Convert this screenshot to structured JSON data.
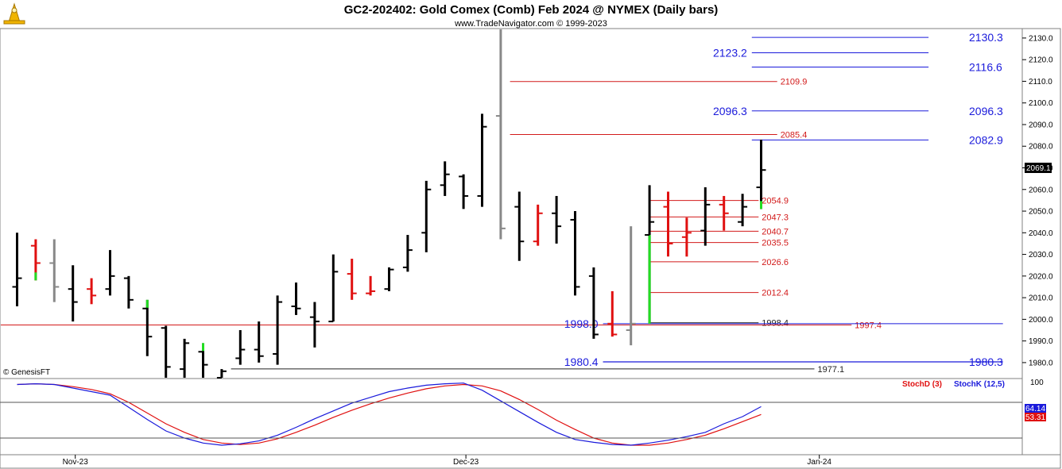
{
  "header": {
    "title": "GC2-202402:  Gold Comex (Comb) Feb 2024 @ NYMEX  (Daily bars)",
    "subtitle": "www.TradeNavigator.com © 1999-2023",
    "watermark": "© GenesisFT"
  },
  "colors": {
    "up_bar": "#000000",
    "down_bar": "#e01010",
    "inside_bar": "#888888",
    "green_bar": "#22dd22",
    "blue_level": "#1a1adb",
    "red_level": "#d21a1a",
    "dark_level": "#222222",
    "stoch_d": "#e01010",
    "stoch_k": "#1a1adb"
  },
  "chart_data": [
    {
      "type": "ohlc",
      "y_ticks": [
        "2130.0",
        "2120.0",
        "2110.0",
        "2100.0",
        "2090.0",
        "2080.0",
        "2070.0",
        "2060.0",
        "2050.0",
        "2040.0",
        "2030.0",
        "2020.0",
        "2010.0",
        "2000.0",
        "1990.0",
        "1980.0"
      ],
      "ylim": [
        1973,
        2134
      ],
      "x_labels": [
        {
          "label": "Nov-23",
          "bar": 3
        },
        {
          "label": "Dec-23",
          "bar": 24
        },
        {
          "label": "Jan-24",
          "bar": 43
        }
      ],
      "last_price": "2069.1",
      "bars": [
        {
          "x": 0,
          "o": 2015,
          "h": 2040,
          "l": 2006,
          "c": 2019,
          "color": "up"
        },
        {
          "x": 1,
          "o": 2034,
          "h": 2037,
          "l": 2018,
          "c": 2026,
          "color": "down",
          "low_tail": "green"
        },
        {
          "x": 2,
          "o": 2026,
          "h": 2037,
          "l": 2008,
          "c": 2015,
          "color": "inside"
        },
        {
          "x": 3,
          "o": 2014,
          "h": 2025,
          "l": 1999,
          "c": 2008,
          "color": "up"
        },
        {
          "x": 4,
          "o": 2014,
          "h": 2019,
          "l": 2007,
          "c": 2011,
          "color": "down"
        },
        {
          "x": 5,
          "o": 2014,
          "h": 2032,
          "l": 2011,
          "c": 2020,
          "color": "up"
        },
        {
          "x": 6,
          "o": 2019,
          "h": 2020,
          "l": 2005,
          "c": 2009,
          "color": "up"
        },
        {
          "x": 7,
          "o": 2005,
          "h": 2009,
          "l": 1983,
          "c": 1992,
          "color": "up",
          "high_tail": "green"
        },
        {
          "x": 8,
          "o": 1996,
          "h": 1997,
          "l": 1970,
          "c": 1978,
          "color": "up"
        },
        {
          "x": 9,
          "o": 1977,
          "h": 1991,
          "l": 1971,
          "c": 1989,
          "color": "up"
        },
        {
          "x": 10,
          "o": 1985,
          "h": 1989,
          "l": 1972,
          "c": 1979,
          "color": "up",
          "high_tail": "green"
        },
        {
          "x": 11,
          "o": 1973,
          "h": 1977,
          "l": 1968,
          "c": 1976,
          "color": "up"
        },
        {
          "x": 12,
          "o": 1982,
          "h": 1995,
          "l": 1979,
          "c": 1986,
          "color": "up"
        },
        {
          "x": 13,
          "o": 1986,
          "h": 1999,
          "l": 1980,
          "c": 1983,
          "color": "up"
        },
        {
          "x": 14,
          "o": 1984,
          "h": 2011,
          "l": 1979,
          "c": 2008,
          "color": "up"
        },
        {
          "x": 15,
          "o": 2006,
          "h": 2017,
          "l": 2002,
          "c": 2005,
          "color": "up"
        },
        {
          "x": 16,
          "o": 2001,
          "h": 2008,
          "l": 1987,
          "c": 1999,
          "color": "up"
        },
        {
          "x": 17,
          "o": 1999,
          "h": 2030,
          "l": 1999,
          "c": 2022,
          "color": "up"
        },
        {
          "x": 18,
          "o": 2021,
          "h": 2028,
          "l": 2009,
          "c": 2012,
          "color": "down"
        },
        {
          "x": 19,
          "o": 2012,
          "h": 2020,
          "l": 2011,
          "c": 2013,
          "color": "down"
        },
        {
          "x": 20,
          "o": 2014,
          "h": 2024,
          "l": 2013,
          "c": 2023,
          "color": "up"
        },
        {
          "x": 21,
          "o": 2024,
          "h": 2039,
          "l": 2022,
          "c": 2032,
          "color": "up"
        },
        {
          "x": 22,
          "o": 2040,
          "h": 2064,
          "l": 2031,
          "c": 2060,
          "color": "up"
        },
        {
          "x": 23,
          "o": 2062,
          "h": 2073,
          "l": 2057,
          "c": 2067,
          "color": "up"
        },
        {
          "x": 24,
          "o": 2066,
          "h": 2067,
          "l": 2051,
          "c": 2057,
          "color": "up"
        },
        {
          "x": 25,
          "o": 2057,
          "h": 2095,
          "l": 2052,
          "c": 2089,
          "color": "up"
        },
        {
          "x": 26,
          "o": 2094,
          "h": 2146,
          "l": 2037,
          "c": 2042,
          "color": "inside"
        },
        {
          "x": 27,
          "o": 2052,
          "h": 2059,
          "l": 2027,
          "c": 2036,
          "color": "up"
        },
        {
          "x": 28,
          "o": 2036,
          "h": 2053,
          "l": 2034,
          "c": 2049,
          "color": "down"
        },
        {
          "x": 29,
          "o": 2049,
          "h": 2057,
          "l": 2035,
          "c": 2043,
          "color": "up"
        },
        {
          "x": 30,
          "o": 2046,
          "h": 2050,
          "l": 2011,
          "c": 2015,
          "color": "up"
        },
        {
          "x": 31,
          "o": 2020,
          "h": 2024,
          "l": 1991,
          "c": 1993,
          "color": "up"
        },
        {
          "x": 32,
          "o": 1998,
          "h": 2013,
          "l": 1992,
          "c": 1993,
          "color": "down"
        },
        {
          "x": 33,
          "o": 1995,
          "h": 2043,
          "l": 1988,
          "c": 1998,
          "color": "inside"
        },
        {
          "x": 34,
          "o": 2039,
          "h": 2062,
          "l": 1998,
          "c": 2045,
          "color": "up",
          "low_tail": "green"
        },
        {
          "x": 35,
          "o": 2052,
          "h": 2059,
          "l": 2029,
          "c": 2035,
          "color": "down"
        },
        {
          "x": 36,
          "o": 2038,
          "h": 2047,
          "l": 2029,
          "c": 2040,
          "color": "down"
        },
        {
          "x": 37,
          "o": 2041,
          "h": 2061,
          "l": 2034,
          "c": 2053,
          "color": "up"
        },
        {
          "x": 38,
          "o": 2053,
          "h": 2057,
          "l": 2041,
          "c": 2049,
          "color": "down"
        },
        {
          "x": 39,
          "o": 2045,
          "h": 2058,
          "l": 2043,
          "c": 2052,
          "color": "up"
        },
        {
          "x": 40,
          "o": 2061,
          "h": 2083,
          "l": 2051,
          "c": 2069,
          "color": "up",
          "low_tail": "green"
        }
      ],
      "levels": [
        {
          "value": 2130.3,
          "label": "2130.3",
          "color": "blue",
          "from_bar": 39.5,
          "to_bar": 49,
          "label_side": "right"
        },
        {
          "value": 2123.2,
          "label": "2123.2",
          "color": "blue",
          "from_bar": 39.5,
          "to_bar": 49,
          "label_side": "left"
        },
        {
          "value": 2116.6,
          "label": "2116.6",
          "color": "blue",
          "from_bar": 39.5,
          "to_bar": 49,
          "label_side": "right"
        },
        {
          "value": 2109.9,
          "label": "2109.9",
          "color": "red",
          "from_bar": 26.5,
          "to_bar": 43,
          "label_side": "right-inline"
        },
        {
          "value": 2096.3,
          "label": "2096.3",
          "color": "blue",
          "from_bar": 39.5,
          "to_bar": 49,
          "label_side": "both"
        },
        {
          "value": 2085.4,
          "label": "2085.4",
          "color": "red",
          "from_bar": 26.5,
          "to_bar": 43,
          "label_side": "right-inline"
        },
        {
          "value": 2082.9,
          "label": "2082.9",
          "color": "blue",
          "from_bar": 39.5,
          "to_bar": 49,
          "label_side": "right"
        },
        {
          "value": 2054.9,
          "label": "2054.9",
          "color": "red",
          "from_bar": 34,
          "to_bar": 42,
          "label_side": "right-inline"
        },
        {
          "value": 2047.3,
          "label": "2047.3",
          "color": "red",
          "from_bar": 34,
          "to_bar": 42,
          "label_side": "right-inline"
        },
        {
          "value": 2040.7,
          "label": "2040.7",
          "color": "red",
          "from_bar": 34,
          "to_bar": 42,
          "label_side": "right-inline"
        },
        {
          "value": 2035.5,
          "label": "2035.5",
          "color": "red",
          "from_bar": 34,
          "to_bar": 42,
          "label_side": "right-inline"
        },
        {
          "value": 2026.6,
          "label": "2026.6",
          "color": "red",
          "from_bar": 34,
          "to_bar": 42,
          "label_side": "right-inline"
        },
        {
          "value": 2012.4,
          "label": "2012.4",
          "color": "red",
          "from_bar": 34,
          "to_bar": 42,
          "label_side": "right-inline"
        },
        {
          "value": 1998.4,
          "label": "1998.4",
          "color": "dark",
          "from_bar": 34,
          "to_bar": 42,
          "label_side": "right-inline"
        },
        {
          "value": 1997.4,
          "label": "1997.4",
          "color": "red",
          "from_bar": -1,
          "to_bar": 47,
          "label_side": "right-inline"
        },
        {
          "value": 1998.0,
          "label": "1998.0",
          "color": "blue",
          "from_bar": 31.5,
          "to_bar": 53,
          "label_side": "left"
        },
        {
          "value": 1980.4,
          "label": "1980.4",
          "color": "blue",
          "from_bar": 31.5,
          "to_bar": 53,
          "label_side": "left"
        },
        {
          "value": 1980.3,
          "label": "1980.3",
          "color": "blue",
          "from_bar": 31.5,
          "to_bar": 53,
          "label_side": "right"
        },
        {
          "value": 1977.1,
          "label": "1977.1",
          "color": "dark",
          "from_bar": 11.5,
          "to_bar": 45,
          "label_side": "right-inline"
        }
      ]
    },
    {
      "type": "line",
      "ylim": [
        0,
        100
      ],
      "y_ticks": [
        "100"
      ],
      "last_values": [
        "64.14",
        "53.31"
      ],
      "series": [
        {
          "name": "StochD (3)",
          "color": "red",
          "values": [
            95,
            96,
            95,
            92,
            88,
            82,
            70,
            55,
            40,
            28,
            18,
            13,
            11,
            13,
            19,
            28,
            38,
            49,
            59,
            68,
            76,
            83,
            89,
            93,
            95,
            93,
            86,
            74,
            60,
            45,
            32,
            20,
            13,
            10,
            10,
            13,
            18,
            24,
            33,
            43,
            53
          ]
        },
        {
          "name": "StochK (12,5)",
          "color": "blue",
          "values": [
            95,
            96,
            95,
            90,
            85,
            80,
            63,
            46,
            30,
            20,
            13,
            10,
            12,
            16,
            24,
            35,
            47,
            58,
            69,
            77,
            85,
            90,
            94,
            96,
            97,
            87,
            72,
            57,
            42,
            28,
            18,
            14,
            11,
            10,
            13,
            17,
            22,
            28,
            40,
            50,
            64
          ]
        }
      ]
    }
  ]
}
